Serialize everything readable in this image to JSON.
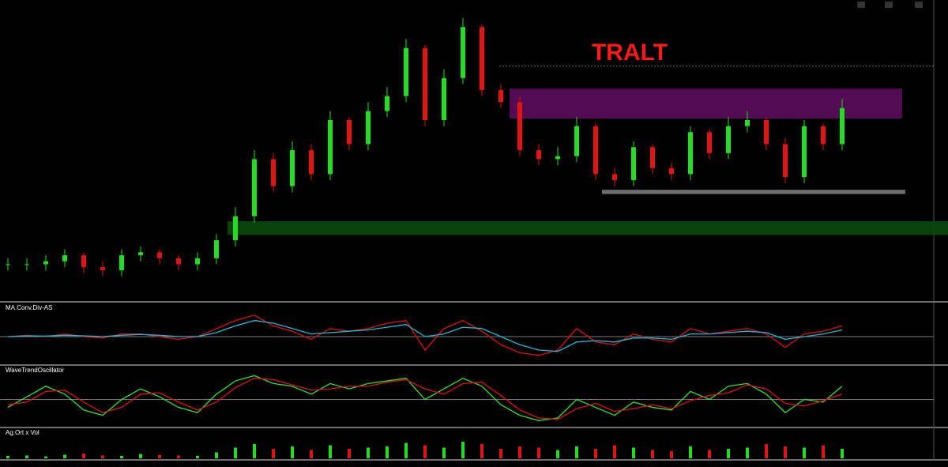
{
  "chart_data": [
    {
      "type": "candlestick",
      "title": "TRALT",
      "ylim": [
        0,
        100
      ],
      "open": [
        12,
        12,
        12,
        13,
        15,
        11,
        10,
        15,
        16,
        14,
        12,
        14,
        20,
        28,
        47,
        38,
        50,
        42,
        60,
        52,
        63,
        68,
        84,
        60,
        74,
        91,
        70,
        66,
        50,
        47,
        48,
        58,
        42,
        40,
        51,
        44,
        42,
        56,
        49,
        58,
        60,
        52,
        41,
        58,
        52
      ],
      "close": [
        12,
        12,
        13,
        15,
        11,
        10,
        15,
        16,
        14,
        12,
        14,
        20,
        28,
        47,
        38,
        50,
        42,
        60,
        52,
        63,
        68,
        84,
        60,
        74,
        91,
        70,
        66,
        50,
        47,
        48,
        58,
        42,
        40,
        51,
        44,
        42,
        56,
        49,
        58,
        60,
        52,
        41,
        58,
        52,
        64
      ],
      "high": [
        14,
        14,
        15,
        17,
        16,
        13,
        17,
        18,
        17,
        15,
        16,
        22,
        31,
        50,
        49,
        53,
        52,
        63,
        61,
        66,
        71,
        87,
        85,
        77,
        94,
        92,
        72,
        68,
        52,
        51,
        61,
        59,
        44,
        53,
        52,
        46,
        58,
        57,
        61,
        63,
        61,
        54,
        60,
        59,
        67
      ],
      "low": [
        10,
        10,
        10,
        11,
        9,
        8,
        8,
        13,
        12,
        10,
        10,
        12,
        18,
        26,
        36,
        36,
        40,
        40,
        50,
        50,
        61,
        66,
        58,
        58,
        72,
        68,
        64,
        48,
        45,
        45,
        46,
        40,
        38,
        38,
        42,
        40,
        40,
        47,
        47,
        56,
        50,
        39,
        39,
        50,
        50
      ],
      "zones": [
        {
          "from": 60.5,
          "to": 70.5,
          "color": "#5c0c5c"
        },
        {
          "from": 21.8,
          "to": 26.3,
          "color": "#0b4a0b"
        },
        {
          "from": 35.4,
          "to": 36.8,
          "color": "#7a7a7a"
        }
      ],
      "levels": [
        78
      ]
    },
    {
      "type": "line",
      "title": "MA.Conv.Div-AS",
      "ylim": [
        -1,
        1
      ],
      "series": [
        {
          "color": "#e01010",
          "values": [
            0,
            0.05,
            0,
            0.1,
            0,
            -0.05,
            0.1,
            0.1,
            0,
            -0.1,
            0,
            0.3,
            0.6,
            0.8,
            0.4,
            0.2,
            -0.1,
            0.3,
            0.2,
            0.3,
            0.5,
            0.6,
            -0.5,
            0.3,
            0.6,
            0.2,
            -0.3,
            -0.6,
            -0.7,
            -0.5,
            0.3,
            -0.2,
            -0.3,
            0.1,
            -0.1,
            -0.2,
            0.3,
            0.1,
            0.2,
            0.3,
            0.1,
            -0.4,
            0.1,
            0.2,
            0.4
          ]
        },
        {
          "color": "#20b8d8",
          "values": [
            0,
            0.02,
            0.02,
            0.05,
            0.03,
            0,
            0.05,
            0.08,
            0.05,
            0,
            0,
            0.15,
            0.4,
            0.6,
            0.5,
            0.3,
            0.1,
            0.15,
            0.2,
            0.25,
            0.35,
            0.45,
            0,
            0.1,
            0.35,
            0.3,
            0,
            -0.3,
            -0.5,
            -0.55,
            -0.2,
            -0.15,
            -0.2,
            -0.05,
            -0.05,
            -0.1,
            0.1,
            0.1,
            0.15,
            0.2,
            0.15,
            -0.1,
            0,
            0.1,
            0.25
          ]
        }
      ]
    },
    {
      "type": "line",
      "title": "WaveTrendOscillator",
      "ylim": [
        -1,
        1
      ],
      "series": [
        {
          "color": "#30e030",
          "values": [
            -0.3,
            0.1,
            0.5,
            0.2,
            -0.4,
            -0.6,
            0,
            0.4,
            0.1,
            -0.3,
            -0.5,
            0.2,
            0.7,
            0.9,
            0.6,
            0.5,
            0.2,
            0.6,
            0.4,
            0.6,
            0.7,
            0.8,
            0,
            0.4,
            0.8,
            0.5,
            -0.2,
            -0.6,
            -0.8,
            -0.7,
            0,
            -0.3,
            -0.6,
            -0.1,
            -0.3,
            -0.4,
            0.3,
            0,
            0.5,
            0.6,
            0.2,
            -0.5,
            0,
            -0.1,
            0.5
          ]
        },
        {
          "color": "#e01010",
          "values": [
            -0.2,
            -0.1,
            0.3,
            0.35,
            -0.1,
            -0.5,
            -0.3,
            0.2,
            0.25,
            -0.1,
            -0.4,
            -0.1,
            0.45,
            0.8,
            0.75,
            0.55,
            0.35,
            0.4,
            0.5,
            0.5,
            0.65,
            0.75,
            0.4,
            0.2,
            0.6,
            0.65,
            0.15,
            -0.4,
            -0.7,
            -0.75,
            -0.35,
            -0.15,
            -0.45,
            -0.35,
            -0.2,
            -0.35,
            -0.05,
            0.15,
            0.25,
            0.55,
            0.4,
            -0.15,
            -0.25,
            -0.05,
            0.2
          ]
        }
      ]
    },
    {
      "type": "bar",
      "title": "Ag.Ort x Vol",
      "ylim": [
        0,
        100
      ],
      "values": [
        10,
        12,
        8,
        15,
        20,
        12,
        10,
        18,
        14,
        12,
        10,
        25,
        45,
        60,
        40,
        50,
        35,
        55,
        40,
        45,
        50,
        65,
        55,
        45,
        70,
        60,
        40,
        50,
        45,
        35,
        50,
        40,
        55,
        45,
        35,
        30,
        50,
        35,
        40,
        45,
        60,
        50,
        45,
        55,
        40
      ]
    }
  ]
}
